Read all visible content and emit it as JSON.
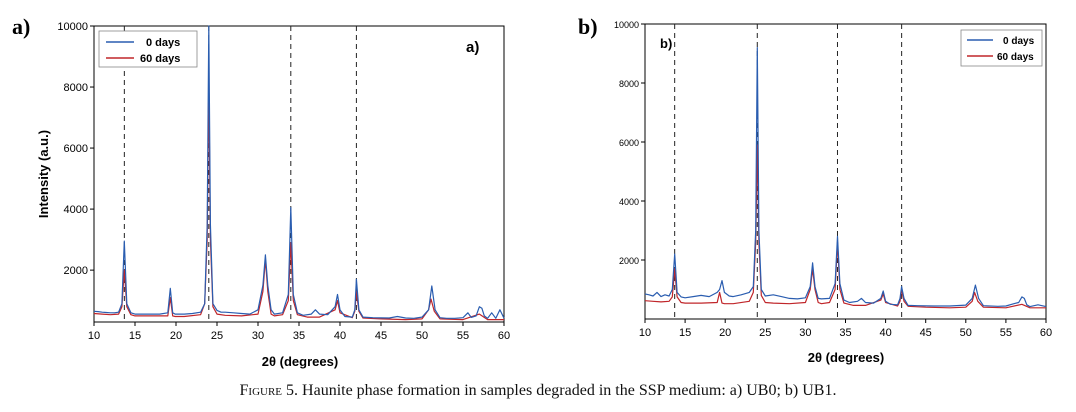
{
  "panels": [
    {
      "panel_label": "a)",
      "inner_label": "a)",
      "ylabel": "Intensity (a.u.)",
      "xlabel": "2θ (degrees)"
    },
    {
      "panel_label": "b)",
      "inner_label": "b)",
      "ylabel": "",
      "xlabel": "2θ (degrees)"
    }
  ],
  "caption": {
    "prefix": "Figure",
    "text": " 5. Haunite phase formation in samples degraded in the SSP medium: a) UB0; b) UB1."
  },
  "colors": {
    "days0": "#2a5db0",
    "days60": "#c0262a"
  },
  "chart_data": [
    {
      "type": "line",
      "xlabel": "2θ (degrees)",
      "ylabel": "Intensity (a.u.)",
      "xlim": [
        10,
        60
      ],
      "ylim": [
        300,
        10000
      ],
      "xticks": [
        10,
        15,
        20,
        25,
        30,
        35,
        40,
        45,
        50,
        55,
        60
      ],
      "yticks": [
        2000,
        4000,
        6000,
        8000,
        10000
      ],
      "legend": "top-left",
      "series": [
        {
          "name": "0 days",
          "color": "#2a5db0",
          "x": [
            10,
            10.5,
            11,
            11.5,
            12,
            12.5,
            13,
            13.4,
            13.7,
            14.0,
            14.5,
            15,
            16,
            17,
            18,
            19,
            19.3,
            19.6,
            19.9,
            20.5,
            21,
            22,
            23,
            23.5,
            23.8,
            24.0,
            24.2,
            24.5,
            25,
            25.5,
            26,
            27,
            28,
            29,
            30,
            30.6,
            30.9,
            31.2,
            31.6,
            32,
            33,
            33.7,
            34.0,
            34.3,
            34.8,
            35.5,
            36.5,
            37,
            37.5,
            38.5,
            39.4,
            39.7,
            40.0,
            40.6,
            41.5,
            41.8,
            42.0,
            42.3,
            42.8,
            44,
            46,
            47,
            48,
            49,
            50,
            50.8,
            51.2,
            51.6,
            52.2,
            53,
            54,
            55,
            55.6,
            56,
            56.6,
            57.0,
            57.3,
            57.6,
            58,
            58.5,
            59,
            59.5,
            60
          ],
          "y": [
            650,
            640,
            620,
            610,
            600,
            600,
            620,
            900,
            2950,
            900,
            600,
            560,
            560,
            560,
            560,
            600,
            1400,
            600,
            560,
            560,
            560,
            580,
            620,
            900,
            3500,
            10000,
            3500,
            900,
            680,
            620,
            620,
            600,
            580,
            560,
            700,
            1500,
            2500,
            1500,
            700,
            560,
            600,
            1200,
            4050,
            1200,
            600,
            520,
            560,
            700,
            560,
            540,
            800,
            1200,
            700,
            480,
            460,
            700,
            1700,
            700,
            460,
            440,
            430,
            480,
            430,
            420,
            460,
            700,
            1480,
            700,
            440,
            420,
            420,
            440,
            600,
            450,
            500,
            800,
            750,
            500,
            420,
            600,
            420,
            700,
            420
          ]
        },
        {
          "name": "60 days",
          "color": "#c0262a",
          "x": [
            10,
            11,
            12,
            13,
            13.4,
            13.7,
            14.0,
            14.5,
            15,
            17,
            19,
            19.3,
            19.6,
            19.9,
            21,
            23,
            23.5,
            23.8,
            24.0,
            24.2,
            24.5,
            25,
            26,
            28,
            30,
            30.6,
            30.9,
            31.2,
            31.6,
            32,
            33,
            33.7,
            34.0,
            34.3,
            34.8,
            36,
            37.5,
            39.4,
            39.7,
            40.0,
            41.5,
            41.8,
            42.0,
            42.3,
            42.8,
            45,
            48,
            50,
            50.8,
            51.1,
            51.5,
            52.2,
            55,
            57,
            58,
            60
          ],
          "y": [
            580,
            560,
            540,
            560,
            800,
            2000,
            800,
            540,
            500,
            500,
            500,
            1100,
            500,
            480,
            480,
            540,
            900,
            3000,
            8200,
            3000,
            800,
            560,
            520,
            500,
            560,
            1300,
            2350,
            1300,
            560,
            500,
            540,
            1000,
            2900,
            1000,
            540,
            460,
            460,
            700,
            1000,
            600,
            440,
            650,
            1300,
            650,
            430,
            400,
            380,
            400,
            700,
            1050,
            650,
            400,
            380,
            560,
            380,
            380
          ]
        }
      ],
      "reference_lines": [
        13.7,
        24.0,
        34.0,
        42.0
      ]
    },
    {
      "type": "line",
      "xlabel": "2θ (degrees)",
      "ylabel": "",
      "xlim": [
        10,
        60
      ],
      "ylim": [
        0,
        10000
      ],
      "xticks": [
        10,
        15,
        20,
        25,
        30,
        35,
        40,
        45,
        50,
        55,
        60
      ],
      "yticks": [
        2000,
        4000,
        6000,
        8000,
        10000
      ],
      "legend": "top-right",
      "series": [
        {
          "name": "0 days",
          "color": "#2a5db0",
          "x": [
            10,
            10.5,
            11,
            11.5,
            12,
            12.5,
            13,
            13.4,
            13.7,
            14.0,
            14.5,
            15,
            16,
            17,
            18,
            19,
            19.3,
            19.6,
            19.9,
            20.5,
            21,
            22,
            23,
            23.5,
            23.8,
            24.0,
            24.2,
            24.5,
            25,
            26,
            27,
            28,
            29,
            30,
            30.6,
            30.9,
            31.2,
            31.6,
            32,
            33,
            33.7,
            34.0,
            34.3,
            34.8,
            35.5,
            36.5,
            37,
            37.5,
            38.5,
            39.4,
            39.7,
            40.0,
            40.6,
            41.5,
            41.8,
            42.0,
            42.3,
            42.8,
            44,
            46,
            48,
            50,
            50.8,
            51.2,
            51.6,
            52.2,
            54,
            55,
            56,
            56.6,
            57.0,
            57.3,
            57.6,
            58,
            59,
            60
          ],
          "y": [
            850,
            820,
            780,
            900,
            760,
            820,
            780,
            1000,
            2200,
            900,
            750,
            720,
            760,
            800,
            760,
            900,
            1000,
            1300,
            900,
            780,
            760,
            820,
            900,
            1100,
            3000,
            9200,
            3000,
            1000,
            780,
            820,
            760,
            700,
            680,
            720,
            1100,
            1900,
            1100,
            700,
            680,
            700,
            1200,
            2800,
            1200,
            640,
            560,
            600,
            700,
            560,
            540,
            700,
            950,
            600,
            500,
            480,
            700,
            1100,
            700,
            460,
            450,
            440,
            440,
            470,
            700,
            1150,
            700,
            450,
            430,
            440,
            520,
            560,
            750,
            700,
            480,
            420,
            480,
            420
          ]
        },
        {
          "name": "60 days",
          "color": "#c0262a",
          "x": [
            10,
            11,
            12,
            13,
            13.4,
            13.7,
            14.0,
            14.5,
            15,
            17,
            19,
            19.3,
            19.6,
            19.9,
            21,
            23,
            23.5,
            23.8,
            24.0,
            24.2,
            24.5,
            25,
            26,
            28,
            30,
            30.6,
            30.9,
            31.2,
            31.6,
            32,
            33,
            33.7,
            34.0,
            34.3,
            34.8,
            36,
            37.5,
            39.4,
            39.7,
            40.0,
            41.5,
            41.8,
            42.0,
            42.3,
            42.8,
            45,
            48,
            50,
            50.8,
            51.1,
            51.5,
            52.2,
            55,
            57,
            58,
            60
          ],
          "y": [
            620,
            600,
            580,
            600,
            750,
            1700,
            750,
            560,
            540,
            540,
            560,
            900,
            540,
            520,
            520,
            600,
            900,
            2600,
            5900,
            2600,
            800,
            560,
            540,
            520,
            560,
            1000,
            1700,
            1000,
            560,
            520,
            560,
            1000,
            2600,
            1000,
            540,
            460,
            460,
            640,
            850,
            560,
            440,
            600,
            1000,
            600,
            430,
            400,
            380,
            400,
            600,
            900,
            600,
            400,
            380,
            500,
            380,
            380
          ]
        }
      ],
      "reference_lines": [
        13.7,
        24.0,
        34.0,
        42.0
      ]
    }
  ]
}
